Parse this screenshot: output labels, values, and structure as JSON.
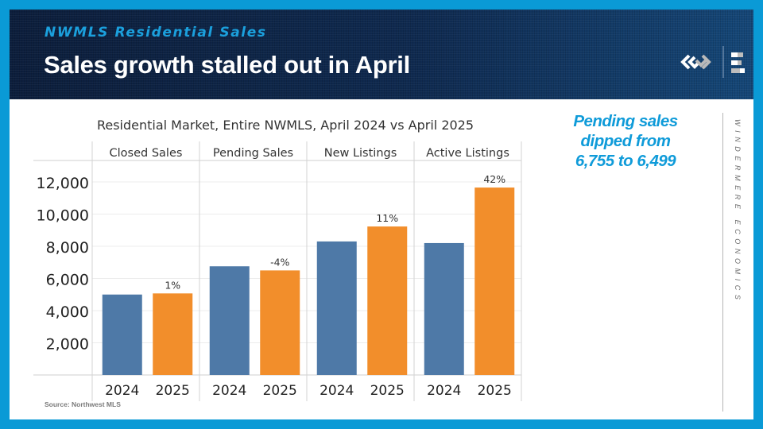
{
  "header": {
    "kicker": "NWMLS Residential Sales",
    "title": "Sales growth stalled out in April",
    "logo_icon": "windermere-logo-icon"
  },
  "callout": {
    "lines": [
      "Pending sales",
      "dipped from",
      "6,755 to 6,499"
    ]
  },
  "side_brand": "WINDERMERE ECONOMICS",
  "source": "Source: Northwest MLS",
  "colors": {
    "frame": "#0a9ad6",
    "series_2024": "#4e79a7",
    "series_2025": "#f28e2b",
    "accent_text": "#0f9bd9",
    "header_dark": "#0f2a50"
  },
  "chart_data": {
    "type": "bar",
    "title": "Residential Market, Entire NWMLS, April 2024 vs April 2025",
    "xlabel": "",
    "ylabel": "",
    "ylim": [
      0,
      12000
    ],
    "yticks": [
      2000,
      4000,
      6000,
      8000,
      10000,
      12000
    ],
    "ytick_labels": [
      "2,000",
      "4,000",
      "6,000",
      "8,000",
      "10,000",
      "12,000"
    ],
    "grid": true,
    "legend": "none",
    "categories": [
      "Closed Sales",
      "Pending Sales",
      "New Listings",
      "Active Listings"
    ],
    "sub_categories": [
      "2024",
      "2025"
    ],
    "series": [
      {
        "name": "2024",
        "color": "#4e79a7",
        "values": [
          5000,
          6755,
          8300,
          8200
        ]
      },
      {
        "name": "2025",
        "color": "#f28e2b",
        "values": [
          5070,
          6499,
          9230,
          11650
        ]
      }
    ],
    "annotations": [
      "1%",
      "-4%",
      "11%",
      "42%"
    ]
  }
}
